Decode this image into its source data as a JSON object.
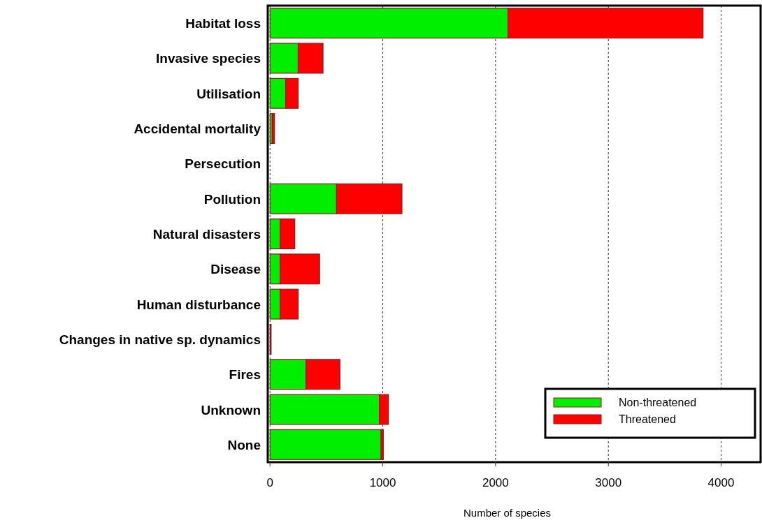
{
  "chart_data": {
    "type": "bar",
    "orientation": "horizontal",
    "stacked": true,
    "xlabel": "Number of species",
    "categories": [
      "Habitat loss",
      "Invasive species",
      "Utilisation",
      "Accidental mortality",
      "Persecution",
      "Pollution",
      "Natural disasters",
      "Disease",
      "Human disturbance",
      "Changes in native sp. dynamics",
      "Fires",
      "Unknown",
      "None"
    ],
    "series": [
      {
        "name": "Non-threatened",
        "color": "#00ee00",
        "values": [
          2110,
          250,
          140,
          20,
          0,
          590,
          90,
          90,
          90,
          5,
          320,
          970,
          985
        ]
      },
      {
        "name": "Threatened",
        "color": "#ff0000",
        "values": [
          1730,
          220,
          110,
          20,
          0,
          580,
          130,
          350,
          160,
          5,
          300,
          80,
          20
        ]
      }
    ],
    "xlim": [
      -20,
      4350
    ],
    "xticks": [
      0,
      1000,
      2000,
      3000,
      4000
    ],
    "grid": "x",
    "legend": "bottom right"
  }
}
